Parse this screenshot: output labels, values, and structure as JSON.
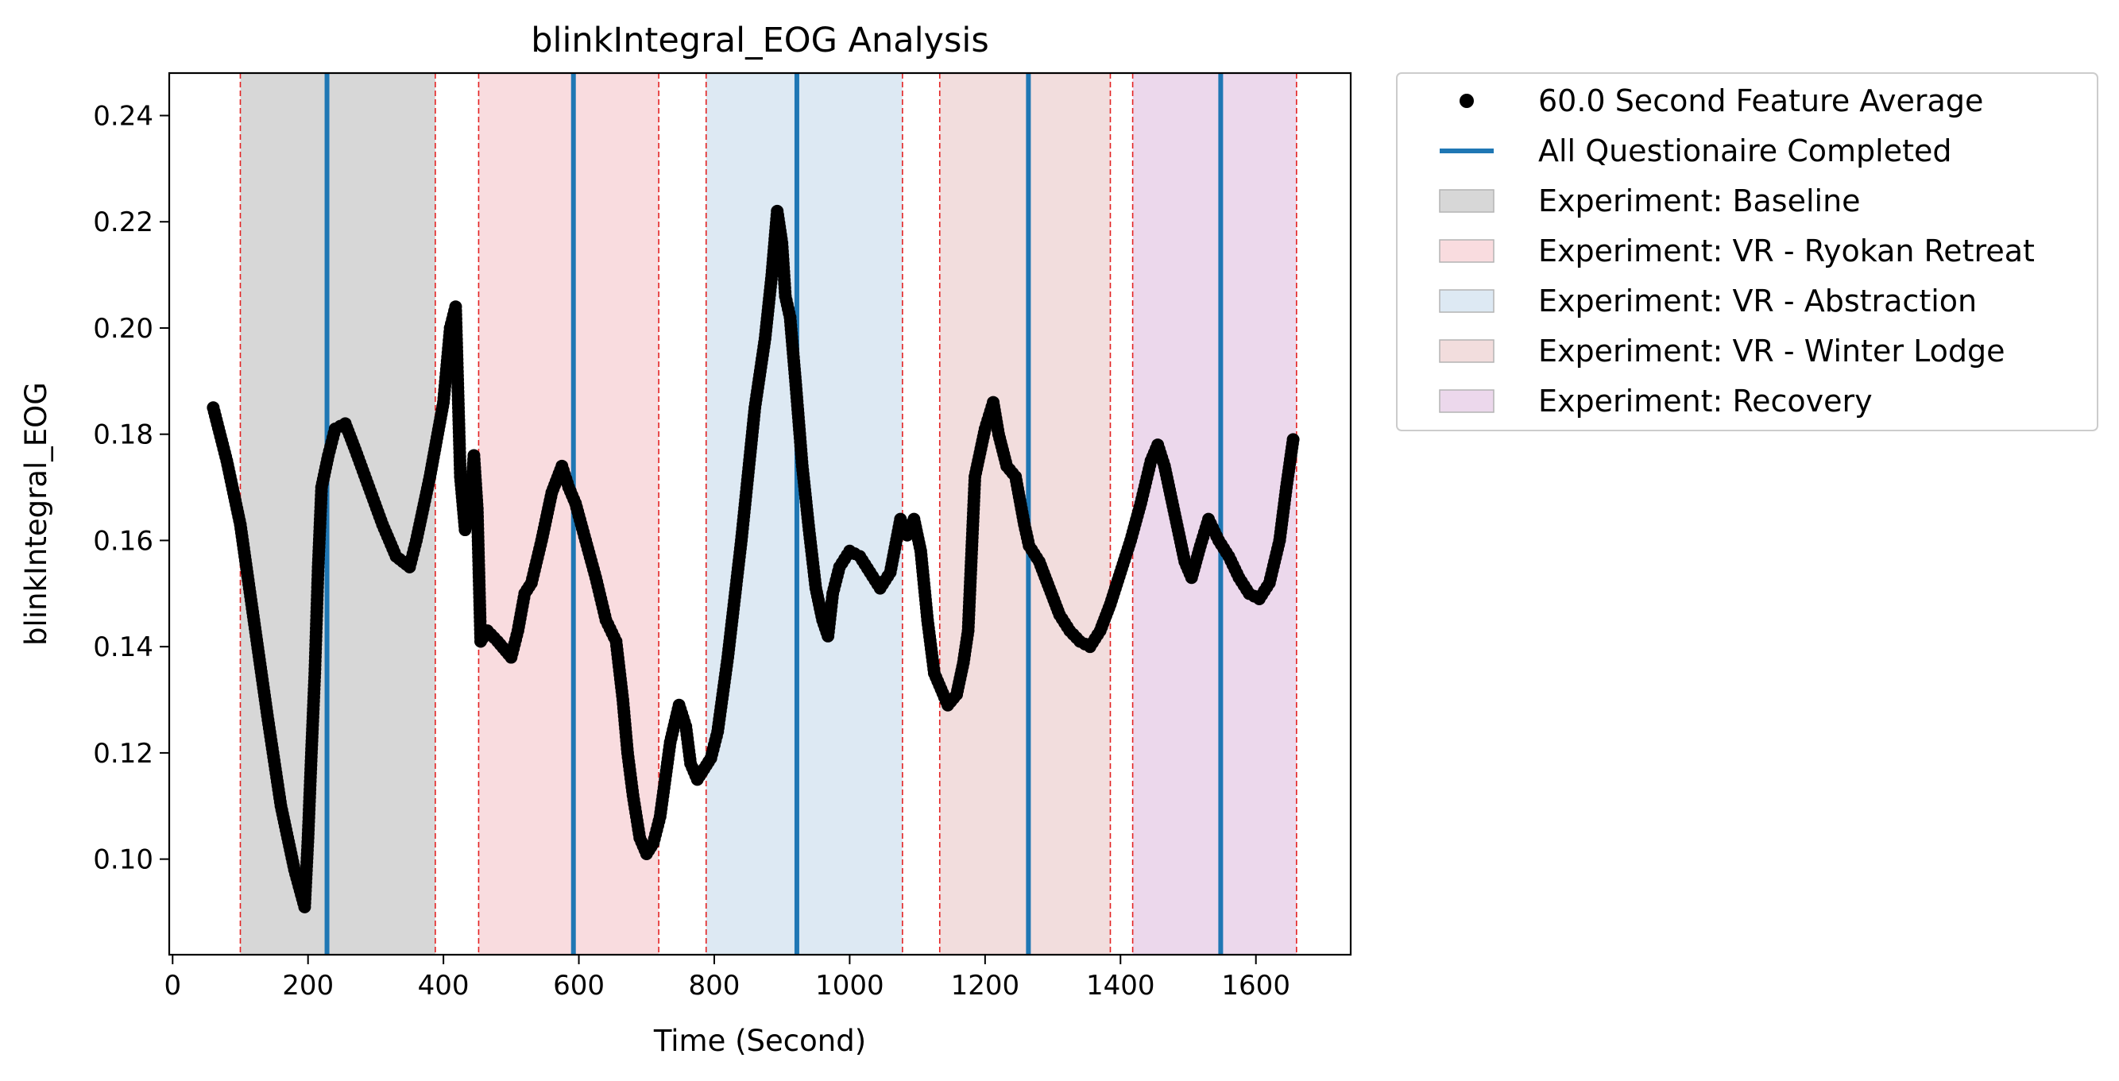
{
  "chart_data": {
    "type": "scatter",
    "title": "blinkIntegral_EOG Analysis",
    "xlabel": "Time (Second)",
    "ylabel": "blinkIntegral_EOG",
    "xlim": [
      -5,
      1740
    ],
    "ylim": [
      0.082,
      0.248
    ],
    "xticks": [
      0,
      200,
      400,
      600,
      800,
      1000,
      1200,
      1400,
      1600
    ],
    "yticks": [
      0.1,
      0.12,
      0.14,
      0.16,
      0.18,
      0.2,
      0.22,
      0.24
    ],
    "xtick_labels": [
      "0",
      "200",
      "400",
      "600",
      "800",
      "1000",
      "1200",
      "1400",
      "1600"
    ],
    "ytick_labels": [
      "0.10",
      "0.12",
      "0.14",
      "0.16",
      "0.18",
      "0.20",
      "0.22",
      "0.24"
    ],
    "grid": false,
    "legend_position": "outside-right-top",
    "series": [
      {
        "name": "60.0 Second Feature Average",
        "kind": "points",
        "color": "#000000",
        "x": [
          60,
          80,
          100,
          120,
          140,
          160,
          180,
          195,
          200,
          205,
          210,
          215,
          220,
          230,
          240,
          255,
          270,
          290,
          310,
          330,
          350,
          360,
          380,
          400,
          410,
          418,
          425,
          432,
          440,
          445,
          450,
          455,
          465,
          480,
          500,
          510,
          520,
          530,
          545,
          560,
          575,
          585,
          595,
          610,
          625,
          640,
          655,
          665,
          672,
          680,
          690,
          700,
          710,
          720,
          735,
          748,
          758,
          765,
          775,
          785,
          795,
          805,
          820,
          840,
          860,
          875,
          885,
          893,
          900,
          905,
          912,
          920,
          930,
          940,
          950,
          960,
          968,
          975,
          985,
          1000,
          1015,
          1030,
          1045,
          1060,
          1075,
          1085,
          1095,
          1105,
          1115,
          1125,
          1135,
          1145,
          1158,
          1168,
          1175,
          1185,
          1200,
          1212,
          1220,
          1232,
          1245,
          1258,
          1265,
          1280,
          1295,
          1310,
          1325,
          1340,
          1355,
          1370,
          1385,
          1400,
          1415,
          1430,
          1445,
          1455,
          1465,
          1475,
          1485,
          1495,
          1505,
          1518,
          1530,
          1545,
          1560,
          1575,
          1590,
          1605,
          1620,
          1635,
          1645,
          1655
        ],
        "y": [
          0.185,
          0.175,
          0.163,
          0.145,
          0.127,
          0.11,
          0.098,
          0.091,
          0.104,
          0.12,
          0.135,
          0.155,
          0.17,
          0.176,
          0.181,
          0.182,
          0.177,
          0.17,
          0.163,
          0.157,
          0.155,
          0.16,
          0.172,
          0.186,
          0.2,
          0.204,
          0.172,
          0.162,
          0.167,
          0.176,
          0.166,
          0.141,
          0.143,
          0.141,
          0.138,
          0.143,
          0.15,
          0.152,
          0.16,
          0.169,
          0.174,
          0.17,
          0.167,
          0.16,
          0.153,
          0.145,
          0.141,
          0.13,
          0.12,
          0.112,
          0.104,
          0.101,
          0.103,
          0.108,
          0.122,
          0.129,
          0.125,
          0.118,
          0.115,
          0.117,
          0.119,
          0.124,
          0.138,
          0.16,
          0.185,
          0.198,
          0.21,
          0.222,
          0.216,
          0.206,
          0.202,
          0.19,
          0.174,
          0.162,
          0.151,
          0.145,
          0.142,
          0.15,
          0.155,
          0.158,
          0.157,
          0.154,
          0.151,
          0.154,
          0.164,
          0.161,
          0.164,
          0.158,
          0.145,
          0.135,
          0.132,
          0.129,
          0.131,
          0.137,
          0.143,
          0.172,
          0.181,
          0.186,
          0.18,
          0.174,
          0.172,
          0.163,
          0.159,
          0.156,
          0.151,
          0.146,
          0.143,
          0.141,
          0.14,
          0.143,
          0.148,
          0.154,
          0.16,
          0.167,
          0.175,
          0.178,
          0.174,
          0.168,
          0.162,
          0.156,
          0.153,
          0.159,
          0.164,
          0.16,
          0.157,
          0.153,
          0.15,
          0.149,
          0.152,
          0.16,
          0.17,
          0.179
        ]
      }
    ],
    "vlines": {
      "name": "All Questionaire Completed",
      "color": "#1f77b4",
      "x": [
        228,
        592,
        922,
        1264,
        1548
      ]
    },
    "regions": [
      {
        "name": "Experiment: Baseline",
        "start": 100,
        "end": 388,
        "color": "#d7d7d7"
      },
      {
        "name": "Experiment: VR - Ryokan Retreat",
        "start": 452,
        "end": 718,
        "color": "#f9dcdf"
      },
      {
        "name": "Experiment: VR - Abstraction",
        "start": 788,
        "end": 1078,
        "color": "#dde9f3"
      },
      {
        "name": "Experiment: VR - Winter Lodge",
        "start": 1133,
        "end": 1385,
        "color": "#f2dddd"
      },
      {
        "name": "Experiment: Recovery",
        "start": 1418,
        "end": 1660,
        "color": "#ecd8ec"
      }
    ],
    "boundary_color": "#e32222"
  }
}
